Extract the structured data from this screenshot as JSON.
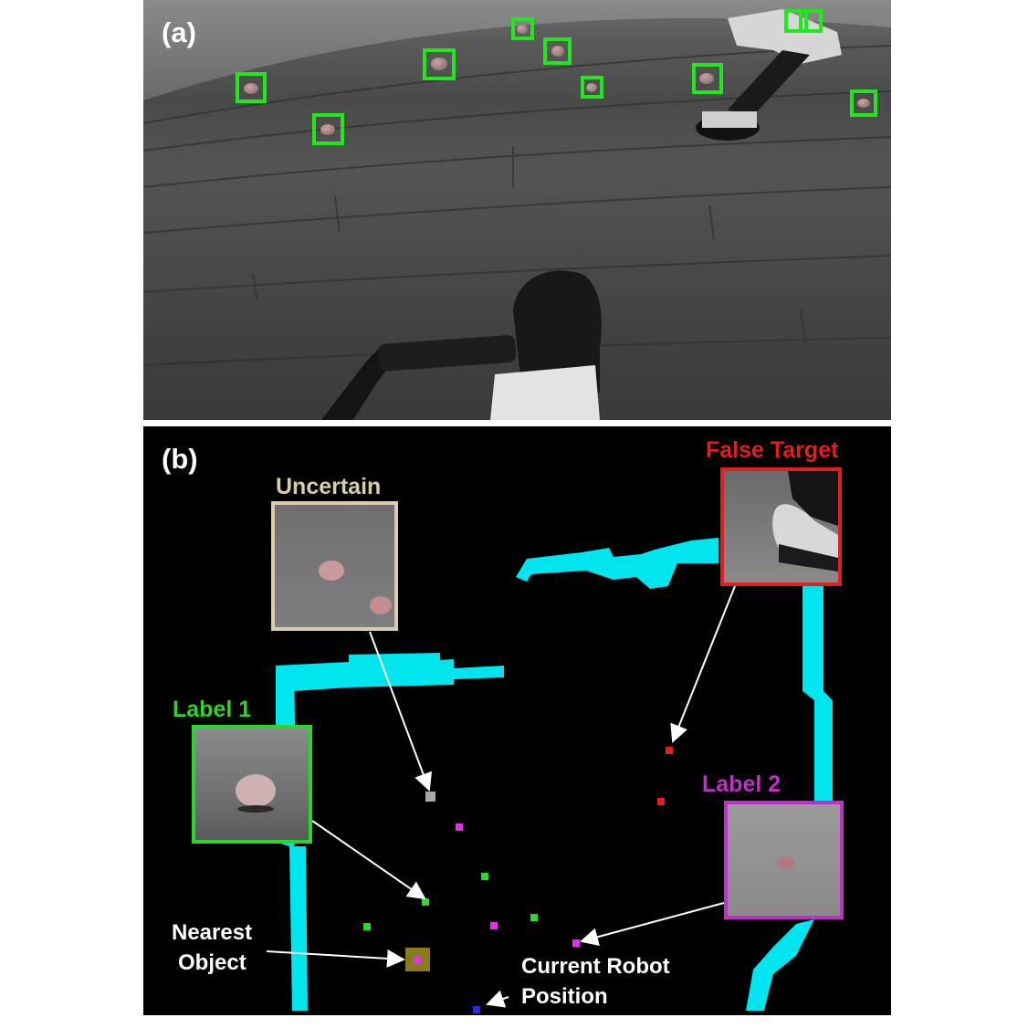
{
  "panel_a": {
    "label": "(a)",
    "box_color": "#22e61e",
    "scene": "camera-view-floor-with-pebbles-and-drill"
  },
  "panel_b": {
    "label": "(b)",
    "map_color": "#00e5ee",
    "callouts": {
      "false_target": {
        "text": "False Target",
        "color": "#e0201e"
      },
      "uncertain": {
        "text": "Uncertain",
        "color": "#d8ccaa"
      },
      "label1": {
        "text": "Label 1",
        "color": "#2ad62a"
      },
      "label2": {
        "text": "Label 2",
        "color": "#c030c8"
      }
    },
    "annotations": {
      "nearest_line1": "Nearest",
      "nearest_line2": "Object",
      "robot_line1": "Current Robot",
      "robot_line2": "Position"
    }
  }
}
